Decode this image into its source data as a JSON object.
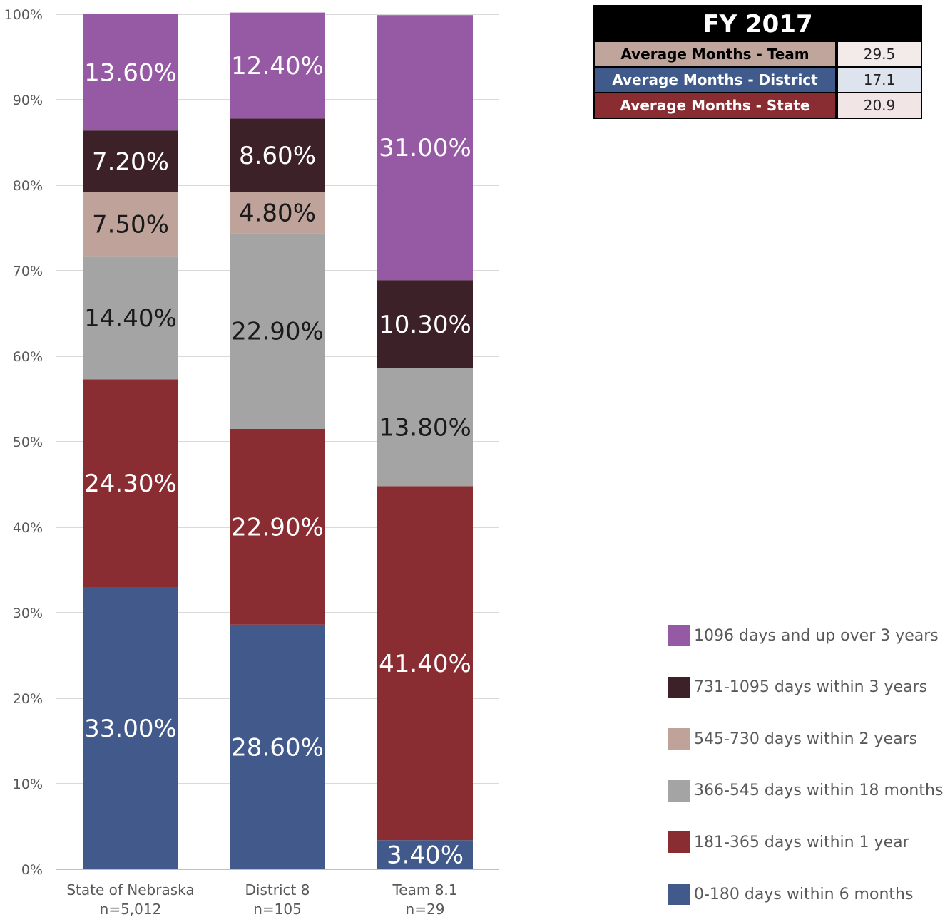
{
  "chart_data": {
    "type": "bar",
    "stacked": true,
    "categories": [
      "State of Nebraska\nn=5,012",
      "District 8\nn=105",
      "Team 8.1\nn=29"
    ],
    "category_lines": [
      [
        "State of Nebraska",
        "n=5,012"
      ],
      [
        "District 8",
        "n=105"
      ],
      [
        "Team 8.1",
        "n=29"
      ]
    ],
    "series": [
      {
        "name": "0-180 days within 6 months",
        "color": "#41598b",
        "label_color": "#ffffff",
        "values": [
          33.0,
          28.6,
          3.4
        ],
        "labels": [
          "33.00%",
          "28.60%",
          "3.40%"
        ]
      },
      {
        "name": "181-365 days within 1 year",
        "color": "#892d33",
        "label_color": "#ffffff",
        "values": [
          24.3,
          22.9,
          41.4
        ],
        "labels": [
          "24.30%",
          "22.90%",
          "41.40%"
        ]
      },
      {
        "name": "366-545 days within 18 months",
        "color": "#a4a4a4",
        "label_color": "#1a1a1a",
        "values": [
          14.4,
          22.9,
          13.8
        ],
        "labels": [
          "14.40%",
          "22.90%",
          "13.80%"
        ]
      },
      {
        "name": "545-730 days within 2 years",
        "color": "#bfa39b",
        "label_color": "#1a1a1a",
        "values": [
          7.5,
          4.8,
          0
        ],
        "labels": [
          "7.50%",
          "4.80%",
          ""
        ]
      },
      {
        "name": "731-1095 days within 3 years",
        "color": "#3d2128",
        "label_color": "#ffffff",
        "values": [
          7.2,
          8.6,
          10.3
        ],
        "labels": [
          "7.20%",
          "8.60%",
          "10.30%"
        ]
      },
      {
        "name": "1096 days and up over 3 years",
        "color": "#9659a4",
        "label_color": "#ffffff",
        "values": [
          13.6,
          12.4,
          31.0
        ],
        "labels": [
          "13.60%",
          "12.40%",
          "31.00%"
        ]
      }
    ],
    "ylim": [
      0,
      100
    ],
    "yticks": [
      "0%",
      "10%",
      "20%",
      "30%",
      "40%",
      "50%",
      "60%",
      "70%",
      "80%",
      "90%",
      "100%"
    ],
    "grid": true,
    "legend_position": "bottom-right",
    "legend_order": [
      5,
      4,
      3,
      2,
      1,
      0
    ]
  },
  "table": {
    "title": "FY 2017",
    "rows": [
      {
        "label": "Average Months - Team",
        "value": "29.5"
      },
      {
        "label": "Average Months - District",
        "value": "17.1"
      },
      {
        "label": "Average Months - State",
        "value": "20.9"
      }
    ]
  }
}
